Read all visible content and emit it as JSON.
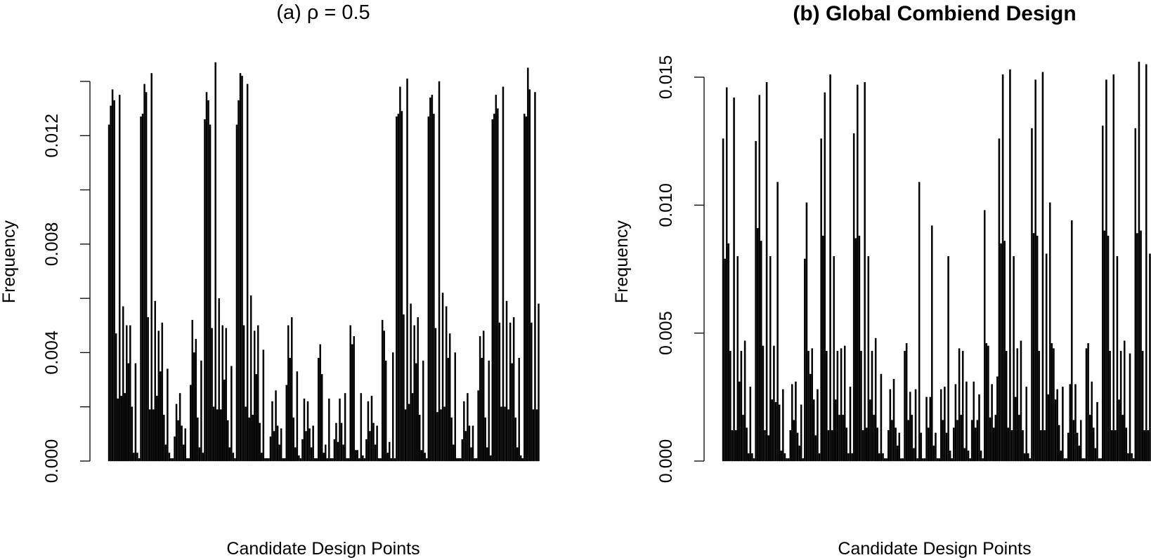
{
  "chart_data": [
    {
      "type": "bar",
      "title": "(a) ρ = 0.5",
      "title_bold": false,
      "xlabel": "Candidate Design Points",
      "ylabel": "Frequency",
      "ylim": [
        0,
        0.014
      ],
      "yticks": [
        "0.000",
        "0.004",
        "0.008",
        "0.012"
      ],
      "ytick_values": [
        0,
        0.004,
        0.008,
        0.012
      ],
      "minor_ticks": [
        0.002,
        0.006,
        0.01,
        0.014
      ],
      "grid": false,
      "bar_color": "#000000",
      "values": [
        0.0124,
        0.0131,
        0.0137,
        0.0133,
        0.0047,
        0.0023,
        0.0135,
        0.0024,
        0.0057,
        0.0025,
        0.005,
        0.0036,
        0.005,
        0.002,
        0.0003,
        0.0036,
        0.0003,
        0.0001,
        0.0127,
        0.0128,
        0.0139,
        0.0136,
        0.0053,
        0.0019,
        0.0143,
        0.0019,
        0.0059,
        0.0024,
        0.0048,
        0.0033,
        0.0051,
        0.0017,
        0.0006,
        0.0034,
        0.0003,
        0.0001,
        0.0001,
        0.0009,
        0.0021,
        0.0015,
        0.0025,
        0.0013,
        0.0006,
        0.0012,
        0.0001,
        0.0001,
        0.0028,
        0.0052,
        0.004,
        0.0045,
        0.0016,
        0.0005,
        0.0037,
        0.0003,
        0.0126,
        0.0136,
        0.0133,
        0.0124,
        0.0049,
        0.002,
        0.0147,
        0.0019,
        0.006,
        0.0019,
        0.005,
        0.003,
        0.0049,
        0.0015,
        0.0005,
        0.0035,
        0.0003,
        0.0001,
        0.0124,
        0.0133,
        0.0143,
        0.0142,
        0.005,
        0.002,
        0.0139,
        0.0016,
        0.0061,
        0.0017,
        0.0048,
        0.0032,
        0.005,
        0.0014,
        0.0003,
        0.0041,
        0.0001,
        0.0001,
        0.0001,
        0.0009,
        0.0022,
        0.0011,
        0.0026,
        0.0013,
        0.0006,
        0.0012,
        0.0001,
        0.0001,
        0.0028,
        0.005,
        0.0038,
        0.0053,
        0.0016,
        0.0005,
        0.0033,
        0.0002,
        0.0001,
        0.0008,
        0.0023,
        0.0011,
        0.0022,
        0.0012,
        0.0005,
        0.0013,
        0.0001,
        0.0001,
        0.0038,
        0.0043,
        0.0032,
        0.0003,
        0.0006,
        0.0001,
        0.0023,
        0.0001,
        0.0001,
        0.0008,
        0.0014,
        0.0007,
        0.0023,
        0.0014,
        0.0006,
        0.0025,
        0.0001,
        0.0001,
        0.005,
        0.0043,
        0.0046,
        0.0004,
        0.0004,
        0.0001,
        0.0025,
        0.0002,
        0.0001,
        0.0008,
        0.0022,
        0.0011,
        0.0024,
        0.0014,
        0.0006,
        0.0013,
        0.0001,
        0.0001,
        0.0052,
        0.0048,
        0.0037,
        0.0003,
        0.0007,
        0.0001,
        0.004,
        0.0001,
        0.0127,
        0.0128,
        0.0138,
        0.0129,
        0.0054,
        0.0019,
        0.0141,
        0.0021,
        0.0058,
        0.0025,
        0.005,
        0.0036,
        0.0053,
        0.0017,
        0.0004,
        0.0037,
        0.0003,
        0.0001,
        0.0127,
        0.0134,
        0.0135,
        0.0128,
        0.0049,
        0.0018,
        0.014,
        0.0019,
        0.0062,
        0.002,
        0.0057,
        0.0038,
        0.0047,
        0.0016,
        0.0006,
        0.004,
        0.0001,
        0.0001,
        0.0001,
        0.0008,
        0.0022,
        0.0011,
        0.0025,
        0.0013,
        0.0005,
        0.0013,
        0.0001,
        0.0001,
        0.0026,
        0.0046,
        0.0038,
        0.0048,
        0.0016,
        0.0005,
        0.0037,
        0.0002,
        0.0126,
        0.0128,
        0.0135,
        0.013,
        0.0051,
        0.002,
        0.0138,
        0.002,
        0.0059,
        0.0019,
        0.0051,
        0.0036,
        0.0053,
        0.0016,
        0.0005,
        0.0038,
        0.0002,
        0.0001,
        0.0128,
        0.0127,
        0.0145,
        0.0137,
        0.0051,
        0.0019,
        0.0136,
        0.0019,
        0.0058
      ]
    },
    {
      "type": "bar",
      "title": "(b) Global Combiend Design",
      "title_bold": true,
      "xlabel": "Candidate Design Points",
      "ylabel": "Frequency",
      "ylim": [
        0,
        0.015
      ],
      "yticks": [
        "0.000",
        "0.005",
        "0.010",
        "0.015"
      ],
      "ytick_values": [
        0,
        0.005,
        0.01,
        0.015
      ],
      "minor_ticks": [],
      "grid": false,
      "bar_color": "#000000",
      "values": [
        0.0126,
        0.0079,
        0.0146,
        0.0085,
        0.0043,
        0.0012,
        0.0142,
        0.0012,
        0.008,
        0.0031,
        0.0043,
        0.0018,
        0.0047,
        0.0013,
        0.0003,
        0.0029,
        0.0003,
        0.0001,
        0.0125,
        0.0091,
        0.0143,
        0.0086,
        0.0045,
        0.0012,
        0.0148,
        0.001,
        0.008,
        0.0024,
        0.0045,
        0.0023,
        0.0109,
        0.0022,
        0.0004,
        0.0028,
        0.0003,
        0.0001,
        0.0001,
        0.0012,
        0.003,
        0.0016,
        0.0031,
        0.0011,
        0.0006,
        0.0022,
        0.0001,
        0.0079,
        0.0101,
        0.0043,
        0.0034,
        0.0044,
        0.0024,
        0.001,
        0.0028,
        0.0003,
        0.0126,
        0.0088,
        0.0144,
        0.0043,
        0.0012,
        0.0151,
        0.0012,
        0.008,
        0.0024,
        0.0043,
        0.0018,
        0.0044,
        0.0018,
        0.0045,
        0.0013,
        0.0003,
        0.0029,
        0.0003,
        0.0128,
        0.0087,
        0.0147,
        0.0088,
        0.0043,
        0.0012,
        0.0148,
        0.0013,
        0.008,
        0.0024,
        0.0043,
        0.0018,
        0.0048,
        0.0013,
        0.0003,
        0.0034,
        0.0003,
        0.0001,
        0.0001,
        0.0012,
        0.0028,
        0.0016,
        0.0032,
        0.0013,
        0.0006,
        0.0011,
        0.0001,
        0.0001,
        0.0043,
        0.0046,
        0.0016,
        0.0027,
        0.0018,
        0.0005,
        0.0028,
        0.0001,
        0.0109,
        0.0011,
        0.0001,
        0.0001,
        0.0025,
        0.0013,
        0.0025,
        0.0092,
        0.0006,
        0.0011,
        0.0001,
        0.0001,
        0.0028,
        0.0016,
        0.0029,
        0.0011,
        0.008,
        0.0004,
        0.0001,
        0.0013,
        0.003,
        0.0016,
        0.0044,
        0.0018,
        0.0043,
        0.0005,
        0.0031,
        0.0004,
        0.0001,
        0.0016,
        0.0031,
        0.0013,
        0.0016,
        0.0026,
        0.0004,
        0.0001,
        0.0098,
        0.0046,
        0.0045,
        0.0017,
        0.003,
        0.0013,
        0.0018,
        0.0033,
        0.0126,
        0.0085,
        0.0151,
        0.0086,
        0.0043,
        0.0013,
        0.0153,
        0.0012,
        0.008,
        0.0025,
        0.0044,
        0.0018,
        0.0047,
        0.0012,
        0.0003,
        0.0029,
        0.0003,
        0.0001,
        0.013,
        0.0089,
        0.0149,
        0.0088,
        0.0043,
        0.0012,
        0.0152,
        0.0012,
        0.0081,
        0.0026,
        0.0101,
        0.0046,
        0.0044,
        0.0024,
        0.0028,
        0.0014,
        0.0004,
        0.0029,
        0.0001,
        0.0001,
        0.0011,
        0.003,
        0.0094,
        0.0016,
        0.003,
        0.0011,
        0.0006,
        0.0016,
        0.0001,
        0.0001,
        0.0044,
        0.0046,
        0.0018,
        0.0031,
        0.0013,
        0.0005,
        0.0023,
        0.0001,
        0.0001,
        0.0131,
        0.009,
        0.0149,
        0.0088,
        0.0043,
        0.0012,
        0.0151,
        0.0012,
        0.008,
        0.0024,
        0.0043,
        0.0018,
        0.0047,
        0.0013,
        0.0003,
        0.0042,
        0.0003,
        0.0001,
        0.013,
        0.0089,
        0.0156,
        0.009,
        0.0043,
        0.0012,
        0.0155,
        0.0012,
        0.0081
      ]
    }
  ]
}
